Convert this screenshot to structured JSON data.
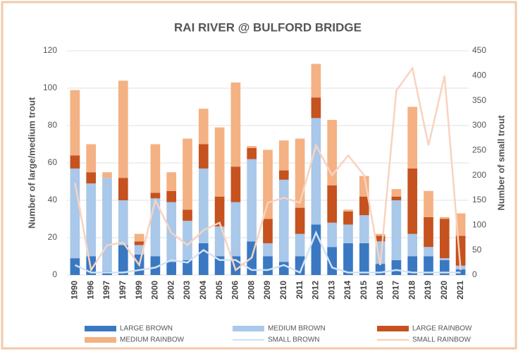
{
  "chart_data": {
    "type": "bar",
    "title": "RAI RIVER @ BULFORD BRIDGE",
    "ylabel": "Number of large/medium trout",
    "y2label": "Number of small trout",
    "categories": [
      "1990",
      "1996",
      "1997",
      "1997",
      "1999",
      "2000",
      "2002",
      "2003",
      "2004",
      "2005",
      "2006",
      "2008",
      "2009",
      "2010",
      "2011",
      "2012",
      "2013",
      "2014",
      "2015",
      "2016",
      "2017",
      "2018",
      "2019",
      "2020",
      "2021"
    ],
    "series": [
      {
        "name": "LARGE BROWN",
        "color": "#3a78c2",
        "values": [
          9,
          10,
          2,
          16,
          11,
          10,
          7,
          8,
          17,
          10,
          10,
          18,
          10,
          7,
          10,
          27,
          15,
          17,
          17,
          6,
          8,
          10,
          10,
          8,
          3
        ]
      },
      {
        "name": "MEDIUM BROWN",
        "color": "#a9c8ea",
        "values": [
          48,
          39,
          50,
          24,
          5,
          31,
          32,
          21,
          40,
          16,
          29,
          44,
          7,
          44,
          12,
          57,
          13,
          10,
          15,
          12,
          32,
          12,
          5,
          1,
          2
        ]
      },
      {
        "name": "LARGE RAINBOW",
        "color": "#c5521f",
        "values": [
          7,
          6,
          0,
          12,
          2,
          3,
          6,
          6,
          13,
          16,
          19,
          6,
          13,
          5,
          14,
          11,
          20,
          7,
          10,
          3,
          2,
          35,
          16,
          21,
          16
        ]
      },
      {
        "name": "MEDIUM RAINBOW",
        "color": "#f4b183",
        "values": [
          35,
          15,
          3,
          52,
          4,
          26,
          10,
          38,
          19,
          37,
          45,
          1,
          37,
          16,
          37,
          18,
          35,
          1,
          11,
          1,
          4,
          33,
          14,
          1,
          12
        ]
      },
      {
        "name": "SMALL BROWN",
        "color": "#d3e3f5",
        "type": "line",
        "axis": "y2",
        "values": [
          20,
          5,
          5,
          5,
          10,
          15,
          30,
          25,
          50,
          30,
          30,
          10,
          10,
          20,
          5,
          85,
          15,
          5,
          5,
          5,
          10,
          5,
          5,
          5,
          5
        ]
      },
      {
        "name": "SMALL RAINBOW",
        "color": "#f8d3bf",
        "type": "line",
        "axis": "y2",
        "values": [
          185,
          10,
          60,
          65,
          20,
          150,
          85,
          60,
          90,
          105,
          10,
          35,
          145,
          155,
          145,
          260,
          200,
          240,
          200,
          20,
          370,
          415,
          260,
          400,
          10
        ]
      }
    ],
    "ylim": [
      0,
      120
    ],
    "yticks": [
      0,
      20,
      40,
      60,
      80,
      100,
      120
    ],
    "y2lim": [
      0,
      450
    ],
    "y2ticks": [
      0,
      50,
      100,
      150,
      200,
      250,
      300,
      350,
      400,
      450
    ],
    "grid": true
  }
}
